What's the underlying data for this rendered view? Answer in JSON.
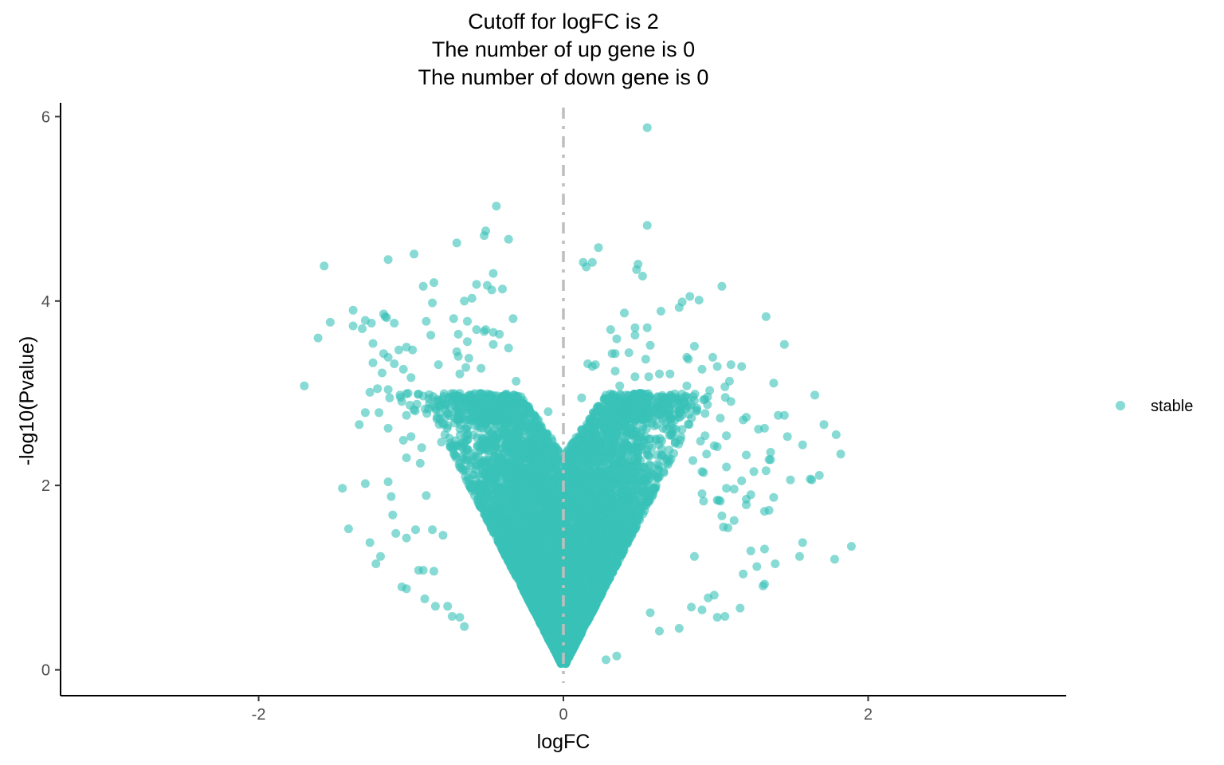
{
  "chart_data": {
    "type": "scatter",
    "title_lines": [
      "Cutoff for logFC is 2",
      "The number of up gene is 0",
      "The number of down gene is 0"
    ],
    "xlabel": "logFC",
    "ylabel": "-log10(Pvalue)",
    "xlim": [
      -3.3,
      3.3
    ],
    "ylim": [
      -0.28,
      6.15
    ],
    "x_ticks": [
      -2,
      0,
      2
    ],
    "x_tick_labels": [
      "-2",
      "0",
      "2"
    ],
    "y_ticks": [
      0,
      2,
      4,
      6
    ],
    "y_tick_labels": [
      "0",
      "2",
      "4",
      "6"
    ],
    "grid": false,
    "cutoff_line": {
      "x": 0,
      "style": "dashed",
      "color": "#bebebe"
    },
    "legend": {
      "placement": "right",
      "entries": [
        {
          "label": "stable",
          "color": "#38c2b7"
        }
      ]
    },
    "series": [
      {
        "name": "stable",
        "color": "#38c2b7",
        "point_count_dense_core": 7000,
        "points": [
          [
            0.55,
            5.88
          ],
          [
            -0.44,
            5.03
          ],
          [
            0.55,
            4.82
          ],
          [
            -0.51,
            4.76
          ],
          [
            -0.52,
            4.71
          ],
          [
            -0.36,
            4.67
          ],
          [
            -0.7,
            4.63
          ],
          [
            0.23,
            4.58
          ],
          [
            -0.98,
            4.51
          ],
          [
            -1.15,
            4.45
          ],
          [
            0.13,
            4.42
          ],
          [
            0.19,
            4.42
          ],
          [
            0.49,
            4.4
          ],
          [
            -1.57,
            4.38
          ],
          [
            0.15,
            4.37
          ],
          [
            0.48,
            4.34
          ],
          [
            0.52,
            4.27
          ],
          [
            -0.46,
            4.3
          ],
          [
            -0.85,
            4.2
          ],
          [
            -0.57,
            4.18
          ],
          [
            -0.5,
            4.17
          ],
          [
            -0.92,
            4.16
          ],
          [
            1.04,
            4.16
          ],
          [
            -0.4,
            4.13
          ],
          [
            -0.47,
            4.12
          ],
          [
            0.83,
            4.05
          ],
          [
            0.89,
            4.01
          ],
          [
            -0.6,
            4.03
          ],
          [
            -0.65,
            4.0
          ],
          [
            0.78,
            3.99
          ],
          [
            -0.86,
            3.98
          ],
          [
            0.76,
            3.93
          ],
          [
            -1.38,
            3.9
          ],
          [
            0.64,
            3.89
          ],
          [
            0.4,
            3.87
          ],
          [
            -1.18,
            3.86
          ],
          [
            -1.17,
            3.83
          ],
          [
            -1.16,
            3.82
          ],
          [
            -0.33,
            3.81
          ],
          [
            -0.72,
            3.81
          ],
          [
            -1.3,
            3.79
          ],
          [
            -0.9,
            3.78
          ],
          [
            -0.63,
            3.78
          ],
          [
            -1.53,
            3.77
          ],
          [
            -1.26,
            3.76
          ],
          [
            -1.11,
            3.76
          ],
          [
            1.33,
            3.83
          ],
          [
            -1.38,
            3.73
          ],
          [
            -1.32,
            3.7
          ],
          [
            -0.51,
            3.69
          ],
          [
            -0.57,
            3.69
          ],
          [
            -0.52,
            3.67
          ],
          [
            0.47,
            3.71
          ],
          [
            0.55,
            3.71
          ],
          [
            0.31,
            3.69
          ],
          [
            -0.46,
            3.66
          ],
          [
            -0.42,
            3.64
          ],
          [
            -0.69,
            3.64
          ],
          [
            -0.87,
            3.63
          ],
          [
            -1.61,
            3.6
          ],
          [
            -0.63,
            3.56
          ],
          [
            -1.25,
            3.54
          ],
          [
            -0.46,
            3.53
          ],
          [
            0.47,
            3.63
          ],
          [
            0.35,
            3.59
          ],
          [
            0.57,
            3.52
          ],
          [
            1.45,
            3.53
          ],
          [
            -1.03,
            3.5
          ],
          [
            -1.08,
            3.47
          ],
          [
            -0.99,
            3.47
          ],
          [
            0.86,
            3.51
          ],
          [
            -0.7,
            3.45
          ],
          [
            -0.36,
            3.49
          ],
          [
            0.43,
            3.44
          ],
          [
            0.32,
            3.43
          ],
          [
            0.34,
            3.43
          ],
          [
            0.81,
            3.39
          ],
          [
            -1.18,
            3.43
          ],
          [
            -1.15,
            3.39
          ],
          [
            -0.69,
            3.4
          ],
          [
            -0.62,
            3.38
          ],
          [
            0.54,
            3.37
          ],
          [
            0.82,
            3.37
          ],
          [
            0.98,
            3.39
          ],
          [
            0.16,
            3.32
          ],
          [
            0.21,
            3.31
          ],
          [
            -1.25,
            3.33
          ],
          [
            -1.11,
            3.32
          ],
          [
            -0.82,
            3.31
          ],
          [
            1.1,
            3.31
          ],
          [
            1.01,
            3.29
          ],
          [
            1.17,
            3.29
          ],
          [
            0.19,
            3.29
          ],
          [
            -0.64,
            3.28
          ],
          [
            -0.54,
            3.27
          ],
          [
            0.91,
            3.26
          ],
          [
            -1.05,
            3.26
          ],
          [
            -1.19,
            3.22
          ],
          [
            -0.68,
            3.21
          ],
          [
            0.34,
            3.24
          ],
          [
            0.63,
            3.21
          ],
          [
            0.7,
            3.21
          ],
          [
            0.56,
            3.18
          ],
          [
            0.47,
            3.18
          ],
          [
            -1.0,
            3.17
          ],
          [
            1.09,
            3.13
          ],
          [
            1.38,
            3.11
          ],
          [
            -0.31,
            3.13
          ],
          [
            -1.7,
            3.08
          ],
          [
            0.81,
            3.08
          ],
          [
            1.06,
            3.07
          ],
          [
            0.37,
            3.08
          ],
          [
            -1.22,
            3.05
          ],
          [
            -1.15,
            3.04
          ],
          [
            -1.27,
            3.01
          ],
          [
            0.96,
            3.03
          ],
          [
            1.65,
            2.98
          ],
          [
            -0.95,
            2.99
          ],
          [
            -0.92,
            2.97
          ],
          [
            -1.14,
            2.95
          ],
          [
            0.71,
            2.95
          ],
          [
            0.74,
            2.93
          ],
          [
            0.86,
            2.92
          ],
          [
            1.1,
            2.91
          ],
          [
            -1.06,
            2.91
          ],
          [
            -0.79,
            2.94
          ],
          [
            -0.52,
            2.94
          ],
          [
            0.12,
            2.95
          ],
          [
            0.29,
            2.92
          ],
          [
            -1.21,
            2.79
          ],
          [
            -1.3,
            2.79
          ],
          [
            -1.03,
            2.76
          ],
          [
            -0.81,
            2.79
          ],
          [
            -0.39,
            2.78
          ],
          [
            -0.1,
            2.8
          ],
          [
            0.93,
            2.78
          ],
          [
            1.2,
            2.74
          ],
          [
            1.45,
            2.76
          ],
          [
            1.41,
            2.76
          ],
          [
            1.03,
            2.73
          ],
          [
            1.18,
            2.71
          ],
          [
            1.71,
            2.66
          ],
          [
            -1.34,
            2.66
          ],
          [
            -1.15,
            2.62
          ],
          [
            1.32,
            2.62
          ],
          [
            1.28,
            2.61
          ],
          [
            0.74,
            2.61
          ],
          [
            0.93,
            2.54
          ],
          [
            1.47,
            2.53
          ],
          [
            1.79,
            2.55
          ],
          [
            1.07,
            2.54
          ],
          [
            -1.0,
            2.53
          ],
          [
            -1.05,
            2.49
          ],
          [
            0.9,
            2.48
          ],
          [
            1.57,
            2.44
          ],
          [
            0.99,
            2.43
          ],
          [
            1.01,
            2.42
          ],
          [
            1.36,
            2.36
          ],
          [
            1.82,
            2.34
          ],
          [
            -0.93,
            2.41
          ],
          [
            -0.8,
            2.47
          ],
          [
            0.94,
            2.34
          ],
          [
            1.2,
            2.33
          ],
          [
            -1.03,
            2.3
          ],
          [
            1.35,
            2.28
          ],
          [
            1.36,
            2.28
          ],
          [
            0.85,
            2.27
          ],
          [
            -0.94,
            2.24
          ],
          [
            1.07,
            2.2
          ],
          [
            1.33,
            2.16
          ],
          [
            1.25,
            2.15
          ],
          [
            0.91,
            2.15
          ],
          [
            0.92,
            2.14
          ],
          [
            1.68,
            2.11
          ],
          [
            1.62,
            2.07
          ],
          [
            1.63,
            2.06
          ],
          [
            1.49,
            2.06
          ],
          [
            1.17,
            2.05
          ],
          [
            -1.15,
            2.04
          ],
          [
            -1.3,
            2.02
          ],
          [
            -1.45,
            1.97
          ],
          [
            1.07,
            1.97
          ],
          [
            1.12,
            1.96
          ],
          [
            1.23,
            1.9
          ],
          [
            0.91,
            1.91
          ],
          [
            -0.9,
            1.89
          ],
          [
            -1.13,
            1.88
          ],
          [
            1.38,
            1.87
          ],
          [
            1.2,
            1.85
          ],
          [
            1.01,
            1.84
          ],
          [
            1.02,
            1.84
          ],
          [
            1.03,
            1.83
          ],
          [
            0.92,
            1.83
          ],
          [
            1.2,
            1.79
          ],
          [
            1.35,
            1.73
          ],
          [
            1.32,
            1.72
          ],
          [
            -1.12,
            1.68
          ],
          [
            1.04,
            1.67
          ],
          [
            1.12,
            1.62
          ],
          [
            -1.41,
            1.53
          ],
          [
            -1.1,
            1.48
          ],
          [
            -0.97,
            1.52
          ],
          [
            -0.86,
            1.52
          ],
          [
            -0.79,
            1.46
          ],
          [
            1.08,
            1.54
          ],
          [
            1.05,
            1.55
          ],
          [
            -1.03,
            1.43
          ],
          [
            1.57,
            1.38
          ],
          [
            -1.27,
            1.38
          ],
          [
            -1.2,
            1.23
          ],
          [
            -1.23,
            1.15
          ],
          [
            1.89,
            1.34
          ],
          [
            1.32,
            1.31
          ],
          [
            1.23,
            1.29
          ],
          [
            1.55,
            1.23
          ],
          [
            1.78,
            1.2
          ],
          [
            1.39,
            1.15
          ],
          [
            1.27,
            1.12
          ],
          [
            1.18,
            1.04
          ],
          [
            0.86,
            1.23
          ],
          [
            -0.95,
            1.08
          ],
          [
            -0.92,
            1.08
          ],
          [
            -0.85,
            1.07
          ],
          [
            -1.06,
            0.9
          ],
          [
            -1.03,
            0.88
          ],
          [
            -0.91,
            0.77
          ],
          [
            -0.84,
            0.69
          ],
          [
            -0.76,
            0.69
          ],
          [
            -0.73,
            0.58
          ],
          [
            -0.68,
            0.57
          ],
          [
            -0.65,
            0.47
          ],
          [
            0.84,
            0.68
          ],
          [
            0.91,
            0.65
          ],
          [
            1.01,
            0.57
          ],
          [
            1.06,
            0.58
          ],
          [
            1.16,
            0.67
          ],
          [
            1.32,
            0.93
          ],
          [
            1.31,
            0.91
          ],
          [
            0.99,
            0.81
          ],
          [
            0.95,
            0.78
          ],
          [
            0.63,
            0.42
          ],
          [
            0.76,
            0.45
          ],
          [
            0.57,
            0.62
          ],
          [
            0.35,
            0.15
          ],
          [
            0.28,
            0.11
          ]
        ]
      }
    ]
  }
}
